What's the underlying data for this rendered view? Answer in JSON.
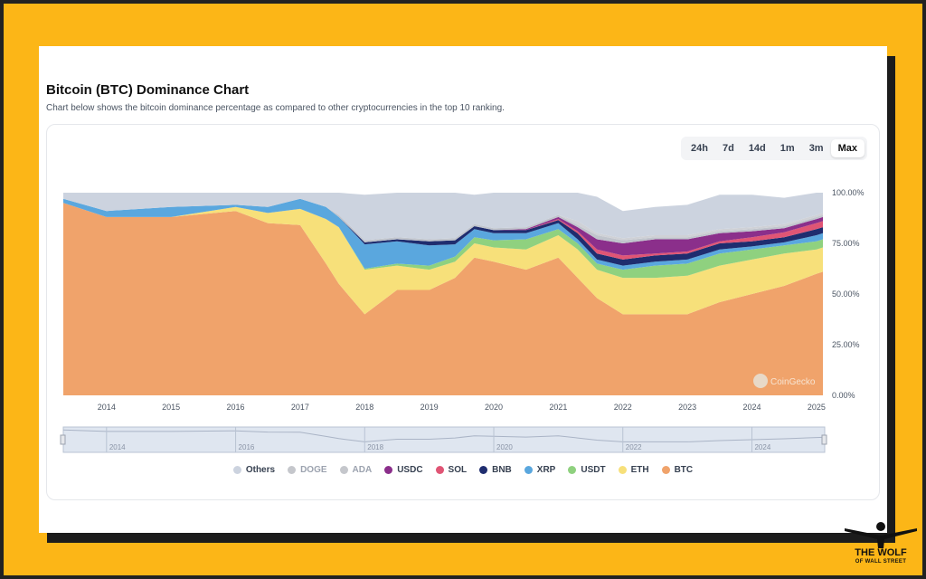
{
  "header": {
    "title": "Bitcoin (BTC) Dominance Chart",
    "subtitle": "Chart below shows the bitcoin dominance percentage as compared to other cryptocurrencies in the top 10 ranking."
  },
  "ranges": [
    {
      "label": "24h",
      "active": false
    },
    {
      "label": "7d",
      "active": false
    },
    {
      "label": "14d",
      "active": false
    },
    {
      "label": "1m",
      "active": false
    },
    {
      "label": "3m",
      "active": false
    },
    {
      "label": "Max",
      "active": true
    }
  ],
  "watermark": "CoinGecko",
  "branding": {
    "line1": "THE WOLF",
    "line2": "OF WALL STREET"
  },
  "chart_data": {
    "type": "area",
    "stacked": true,
    "y_unit": "%",
    "ylim": [
      0,
      100
    ],
    "yticks": [
      "100.00%",
      "75.00%",
      "50.00%",
      "25.00%",
      "0.00%"
    ],
    "xticks": [
      "2014",
      "2015",
      "2016",
      "2017",
      "2018",
      "2019",
      "2020",
      "2021",
      "2022",
      "2023",
      "2024",
      "2025"
    ],
    "navigator_ticks": [
      "2014",
      "2016",
      "2018",
      "2020",
      "2022",
      "2024"
    ],
    "xlim": [
      2013.33,
      2025.1
    ],
    "x": [
      2013.33,
      2014.0,
      2015.0,
      2016.0,
      2016.5,
      2017.0,
      2017.4,
      2017.6,
      2018.0,
      2018.5,
      2019.0,
      2019.4,
      2019.7,
      2020.0,
      2020.5,
      2021.0,
      2021.3,
      2021.6,
      2022.0,
      2022.5,
      2023.0,
      2023.5,
      2024.0,
      2024.5,
      2025.0,
      2025.1
    ],
    "series": [
      {
        "name": "BTC",
        "color": "#f0a36b",
        "values": [
          95,
          88,
          88,
          91,
          85,
          84,
          65,
          55,
          40,
          52,
          52,
          58,
          68,
          66,
          62,
          68,
          58,
          48,
          40,
          40,
          40,
          46,
          50,
          54,
          60,
          61
        ]
      },
      {
        "name": "ETH",
        "color": "#f7e07a",
        "values": [
          0,
          0,
          0,
          2,
          5,
          8,
          22,
          28,
          22,
          12,
          10,
          8,
          7,
          7,
          10,
          11,
          14,
          14,
          18,
          18,
          19,
          18,
          17,
          16,
          12,
          12
        ]
      },
      {
        "name": "USDT",
        "color": "#8fd17f",
        "values": [
          0,
          0,
          0,
          0,
          0,
          0,
          0,
          0,
          0.5,
          1,
          2,
          2.5,
          3,
          3.5,
          5,
          3,
          3,
          3,
          4,
          6,
          6,
          6,
          5,
          4,
          4,
          4
        ]
      },
      {
        "name": "XRP",
        "color": "#5aa7de",
        "values": [
          2,
          3,
          5,
          1,
          3,
          5,
          6,
          5,
          12,
          11,
          10,
          6,
          4,
          3.5,
          3,
          3,
          2,
          2,
          2,
          2,
          2,
          2,
          1.5,
          1.5,
          3,
          3
        ]
      },
      {
        "name": "BNB",
        "color": "#1f2d6f",
        "values": [
          0,
          0,
          0,
          0,
          0,
          0,
          0,
          0,
          1,
          1,
          2,
          2,
          1.5,
          1.5,
          1.5,
          1.5,
          3,
          3,
          3,
          3,
          3,
          3,
          2.5,
          2.5,
          3,
          3
        ]
      },
      {
        "name": "SOL",
        "color": "#e05575",
        "values": [
          0,
          0,
          0,
          0,
          0,
          0,
          0,
          0,
          0,
          0,
          0,
          0,
          0,
          0,
          0,
          0.5,
          1,
          2,
          2,
          1,
          1,
          1,
          2,
          2.5,
          3,
          3
        ]
      },
      {
        "name": "USDC",
        "color": "#8b2f8b",
        "values": [
          0,
          0,
          0,
          0,
          0,
          0,
          0,
          0,
          0,
          0,
          0,
          0,
          0,
          0,
          0.5,
          1,
          2,
          5,
          6,
          7,
          6,
          4,
          3,
          2,
          2,
          2
        ]
      },
      {
        "name": "ADA",
        "color": "#c0c4cc",
        "values": [
          0,
          0,
          0,
          0,
          0,
          0,
          0,
          1,
          1,
          1,
          1,
          1,
          1,
          1,
          1,
          1,
          1,
          2,
          1.5,
          1,
          1,
          1,
          1,
          1,
          1,
          1
        ]
      },
      {
        "name": "DOGE",
        "color": "#cfd1d6",
        "values": [
          0,
          0,
          0,
          0,
          0,
          0,
          0,
          0,
          0,
          0,
          0,
          0,
          0,
          0,
          0,
          0,
          2,
          1,
          1,
          1,
          1,
          1,
          1,
          1,
          1,
          1
        ]
      },
      {
        "name": "Others",
        "color": "#ccd3df",
        "values": [
          3,
          9,
          7,
          6,
          7,
          3,
          7,
          11,
          22.5,
          22,
          23,
          22.5,
          14.5,
          17.5,
          17,
          11,
          14,
          18,
          13.5,
          14,
          15,
          17,
          16,
          13,
          11,
          10
        ]
      }
    ],
    "legend": [
      {
        "name": "Others",
        "color": "#ccd3df",
        "muted": false
      },
      {
        "name": "DOGE",
        "color": "#c5c7cc",
        "muted": true
      },
      {
        "name": "ADA",
        "color": "#c5c7cc",
        "muted": true
      },
      {
        "name": "USDC",
        "color": "#8b2f8b",
        "muted": false
      },
      {
        "name": "SOL",
        "color": "#e05575",
        "muted": false
      },
      {
        "name": "BNB",
        "color": "#1f2d6f",
        "muted": false
      },
      {
        "name": "XRP",
        "color": "#5aa7de",
        "muted": false
      },
      {
        "name": "USDT",
        "color": "#8fd17f",
        "muted": false
      },
      {
        "name": "ETH",
        "color": "#f7e07a",
        "muted": false
      },
      {
        "name": "BTC",
        "color": "#f0a36b",
        "muted": false
      }
    ],
    "legend_position": "bottom",
    "grid": false
  }
}
